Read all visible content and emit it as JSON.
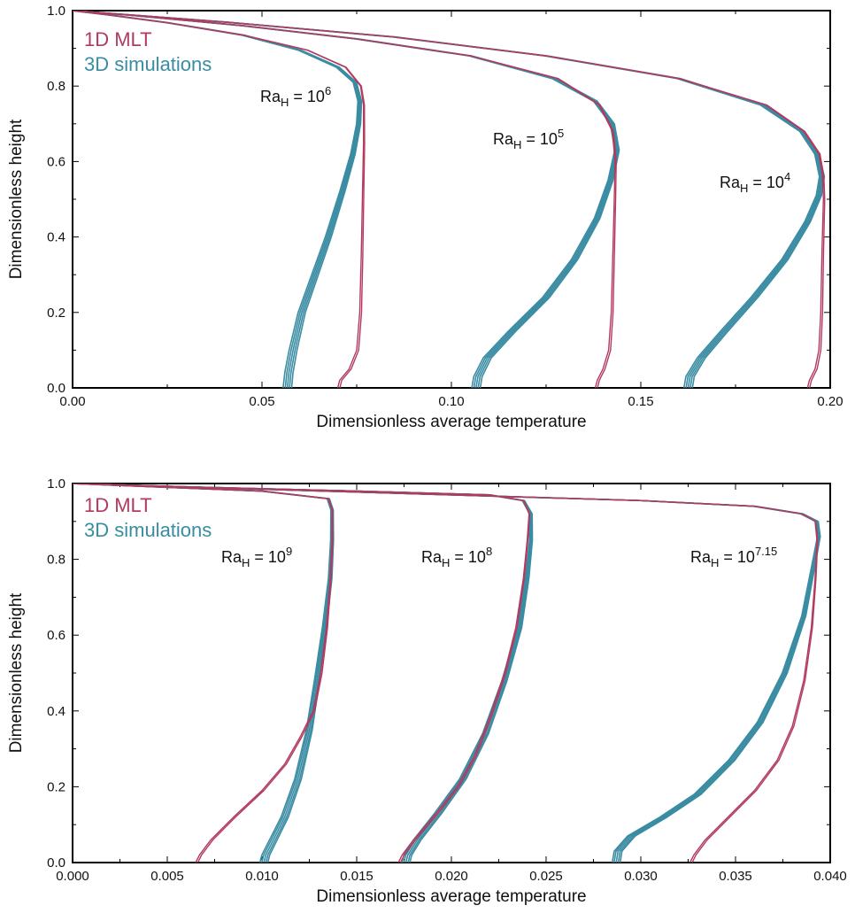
{
  "colors": {
    "mlt": "#b23a5e",
    "sim": "#3a8ca3"
  },
  "chart_data": [
    {
      "type": "line",
      "xlabel": "Dimensionless average temperature",
      "ylabel": "Dimensionless height",
      "xlim": [
        0.0,
        0.2
      ],
      "ylim": [
        0.0,
        1.0
      ],
      "xticks": [
        "0.00",
        "0.05",
        "0.10",
        "0.15",
        "0.20"
      ],
      "yticks": [
        "0.0",
        "0.2",
        "0.4",
        "0.6",
        "0.8",
        "1.0"
      ],
      "legend": {
        "placement": "top-left",
        "entries": [
          "1D MLT",
          "3D simulations"
        ]
      },
      "annotations": [
        {
          "base": "Ra",
          "sub": "H",
          "eq": " = 10",
          "sup": "6"
        },
        {
          "base": "Ra",
          "sub": "H",
          "eq": " = 10",
          "sup": "5"
        },
        {
          "base": "Ra",
          "sub": "H",
          "eq": " = 10",
          "sup": "4"
        }
      ],
      "series": [
        {
          "name": "1D MLT",
          "curves": [
            [
              [
                0.07,
                0.0
              ],
              [
                0.0705,
                0.02
              ],
              [
                0.073,
                0.05
              ],
              [
                0.075,
                0.1
              ],
              [
                0.0758,
                0.2
              ],
              [
                0.0762,
                0.35
              ],
              [
                0.0765,
                0.5
              ],
              [
                0.0768,
                0.65
              ],
              [
                0.0768,
                0.75
              ],
              [
                0.076,
                0.8
              ],
              [
                0.072,
                0.85
              ],
              [
                0.062,
                0.895
              ],
              [
                0.045,
                0.935
              ],
              [
                0.025,
                0.968
              ],
              [
                0.01,
                0.988
              ],
              [
                0.0,
                1.0
              ]
            ],
            [
              [
                0.138,
                0.0
              ],
              [
                0.1385,
                0.02
              ],
              [
                0.14,
                0.05
              ],
              [
                0.1415,
                0.1
              ],
              [
                0.1422,
                0.2
              ],
              [
                0.1426,
                0.35
              ],
              [
                0.143,
                0.5
              ],
              [
                0.1432,
                0.6
              ],
              [
                0.1425,
                0.68
              ],
              [
                0.139,
                0.75
              ],
              [
                0.128,
                0.82
              ],
              [
                0.105,
                0.88
              ],
              [
                0.075,
                0.925
              ],
              [
                0.045,
                0.96
              ],
              [
                0.015,
                0.988
              ],
              [
                0.0,
                1.0
              ]
            ],
            [
              [
                0.194,
                0.0
              ],
              [
                0.1945,
                0.02
              ],
              [
                0.196,
                0.05
              ],
              [
                0.197,
                0.1
              ],
              [
                0.1975,
                0.2
              ],
              [
                0.1978,
                0.35
              ],
              [
                0.1982,
                0.5
              ],
              [
                0.198,
                0.56
              ],
              [
                0.197,
                0.62
              ],
              [
                0.193,
                0.68
              ],
              [
                0.183,
                0.75
              ],
              [
                0.16,
                0.82
              ],
              [
                0.125,
                0.88
              ],
              [
                0.085,
                0.93
              ],
              [
                0.04,
                0.97
              ],
              [
                0.0,
                1.0
              ]
            ]
          ]
        },
        {
          "name": "3D simulations",
          "curves": [
            [
              [
                0.0567,
                0.0
              ],
              [
                0.0571,
                0.04
              ],
              [
                0.0582,
                0.1
              ],
              [
                0.0605,
                0.2
              ],
              [
                0.064,
                0.3
              ],
              [
                0.0675,
                0.4
              ],
              [
                0.0712,
                0.52
              ],
              [
                0.074,
                0.62
              ],
              [
                0.0755,
                0.7
              ],
              [
                0.0758,
                0.76
              ],
              [
                0.0745,
                0.81
              ],
              [
                0.07,
                0.85
              ],
              [
                0.06,
                0.895
              ],
              [
                0.045,
                0.935
              ],
              [
                0.025,
                0.968
              ],
              [
                0.01,
                0.988
              ],
              [
                0.0,
                1.0
              ]
            ],
            [
              [
                0.1065,
                0.0
              ],
              [
                0.107,
                0.03
              ],
              [
                0.1095,
                0.08
              ],
              [
                0.116,
                0.15
              ],
              [
                0.125,
                0.24
              ],
              [
                0.1325,
                0.34
              ],
              [
                0.1385,
                0.45
              ],
              [
                0.142,
                0.55
              ],
              [
                0.1437,
                0.63
              ],
              [
                0.1425,
                0.7
              ],
              [
                0.138,
                0.76
              ],
              [
                0.127,
                0.82
              ],
              [
                0.105,
                0.88
              ],
              [
                0.075,
                0.925
              ],
              [
                0.045,
                0.96
              ],
              [
                0.015,
                0.988
              ],
              [
                0.0,
                1.0
              ]
            ],
            [
              [
                0.1625,
                0.0
              ],
              [
                0.163,
                0.03
              ],
              [
                0.166,
                0.08
              ],
              [
                0.172,
                0.15
              ],
              [
                0.18,
                0.24
              ],
              [
                0.188,
                0.34
              ],
              [
                0.194,
                0.44
              ],
              [
                0.197,
                0.51
              ],
              [
                0.1978,
                0.56
              ],
              [
                0.1965,
                0.62
              ],
              [
                0.1925,
                0.68
              ],
              [
                0.182,
                0.75
              ],
              [
                0.16,
                0.82
              ],
              [
                0.125,
                0.88
              ],
              [
                0.085,
                0.93
              ],
              [
                0.04,
                0.97
              ],
              [
                0.0,
                1.0
              ]
            ]
          ]
        }
      ]
    },
    {
      "type": "line",
      "xlabel": "Dimensionless average temperature",
      "ylabel": "Dimensionless height",
      "xlim": [
        0.0,
        0.04
      ],
      "ylim": [
        0.0,
        1.0
      ],
      "xticks": [
        "0.000",
        "0.005",
        "0.010",
        "0.015",
        "0.020",
        "0.025",
        "0.030",
        "0.035",
        "0.040"
      ],
      "yticks": [
        "0.0",
        "0.2",
        "0.4",
        "0.6",
        "0.8",
        "1.0"
      ],
      "legend": {
        "placement": "top-left",
        "entries": [
          "1D MLT",
          "3D simulations"
        ]
      },
      "annotations": [
        {
          "base": "Ra",
          "sub": "H",
          "eq": " = 10",
          "sup": "9"
        },
        {
          "base": "Ra",
          "sub": "H",
          "eq": " = 10",
          "sup": "8"
        },
        {
          "base": "Ra",
          "sub": "H",
          "eq": " = 10",
          "sup": "7.15"
        }
      ],
      "series": [
        {
          "name": "1D MLT",
          "curves": [
            [
              [
                0.0065,
                0.0
              ],
              [
                0.0067,
                0.02
              ],
              [
                0.0073,
                0.06
              ],
              [
                0.0085,
                0.12
              ],
              [
                0.01,
                0.19
              ],
              [
                0.0112,
                0.26
              ],
              [
                0.012,
                0.33
              ],
              [
                0.0127,
                0.4
              ],
              [
                0.0131,
                0.5
              ],
              [
                0.0134,
                0.62
              ],
              [
                0.0136,
                0.75
              ],
              [
                0.0137,
                0.85
              ],
              [
                0.0137,
                0.93
              ],
              [
                0.0135,
                0.96
              ],
              [
                0.01,
                0.98
              ],
              [
                0.005,
                0.99
              ],
              [
                0.0,
                1.0
              ]
            ],
            [
              [
                0.0172,
                0.0
              ],
              [
                0.0174,
                0.02
              ],
              [
                0.018,
                0.06
              ],
              [
                0.0192,
                0.13
              ],
              [
                0.0203,
                0.2
              ],
              [
                0.0212,
                0.28
              ],
              [
                0.022,
                0.38
              ],
              [
                0.0228,
                0.5
              ],
              [
                0.0234,
                0.62
              ],
              [
                0.0238,
                0.75
              ],
              [
                0.024,
                0.85
              ],
              [
                0.0241,
                0.92
              ],
              [
                0.0238,
                0.955
              ],
              [
                0.022,
                0.97
              ],
              [
                0.015,
                0.98
              ],
              [
                0.007,
                0.99
              ],
              [
                0.0,
                1.0
              ]
            ],
            [
              [
                0.0326,
                0.0
              ],
              [
                0.0328,
                0.02
              ],
              [
                0.0334,
                0.06
              ],
              [
                0.0346,
                0.12
              ],
              [
                0.036,
                0.19
              ],
              [
                0.0372,
                0.27
              ],
              [
                0.038,
                0.36
              ],
              [
                0.0386,
                0.48
              ],
              [
                0.039,
                0.62
              ],
              [
                0.0392,
                0.75
              ],
              [
                0.0393,
                0.85
              ],
              [
                0.0392,
                0.9
              ],
              [
                0.0385,
                0.92
              ],
              [
                0.036,
                0.94
              ],
              [
                0.03,
                0.955
              ],
              [
                0.02,
                0.97
              ],
              [
                0.01,
                0.985
              ],
              [
                0.0,
                1.0
              ]
            ]
          ]
        },
        {
          "name": "3D simulations",
          "curves": [
            [
              [
                0.0101,
                0.0
              ],
              [
                0.0102,
                0.02
              ],
              [
                0.0106,
                0.06
              ],
              [
                0.0112,
                0.12
              ],
              [
                0.0119,
                0.22
              ],
              [
                0.0125,
                0.35
              ],
              [
                0.0129,
                0.48
              ],
              [
                0.0133,
                0.62
              ],
              [
                0.0136,
                0.75
              ],
              [
                0.0137,
                0.85
              ],
              [
                0.0137,
                0.93
              ],
              [
                0.0135,
                0.96
              ],
              [
                0.01,
                0.98
              ],
              [
                0.005,
                0.99
              ],
              [
                0.0,
                1.0
              ]
            ],
            [
              [
                0.0176,
                0.0
              ],
              [
                0.0177,
                0.02
              ],
              [
                0.0182,
                0.06
              ],
              [
                0.0193,
                0.13
              ],
              [
                0.0206,
                0.22
              ],
              [
                0.0218,
                0.34
              ],
              [
                0.0228,
                0.48
              ],
              [
                0.0236,
                0.62
              ],
              [
                0.024,
                0.75
              ],
              [
                0.0242,
                0.85
              ],
              [
                0.0242,
                0.92
              ],
              [
                0.0238,
                0.955
              ],
              [
                0.022,
                0.97
              ],
              [
                0.015,
                0.98
              ],
              [
                0.007,
                0.99
              ],
              [
                0.0,
                1.0
              ]
            ],
            [
              [
                0.0287,
                0.0
              ],
              [
                0.0288,
                0.03
              ],
              [
                0.0295,
                0.07
              ],
              [
                0.0312,
                0.12
              ],
              [
                0.033,
                0.18
              ],
              [
                0.0348,
                0.27
              ],
              [
                0.0363,
                0.37
              ],
              [
                0.0376,
                0.5
              ],
              [
                0.0386,
                0.65
              ],
              [
                0.0391,
                0.78
              ],
              [
                0.0394,
                0.86
              ],
              [
                0.0393,
                0.9
              ],
              [
                0.0385,
                0.92
              ],
              [
                0.036,
                0.94
              ],
              [
                0.03,
                0.955
              ],
              [
                0.02,
                0.97
              ],
              [
                0.01,
                0.985
              ],
              [
                0.0,
                1.0
              ]
            ]
          ]
        }
      ]
    }
  ]
}
